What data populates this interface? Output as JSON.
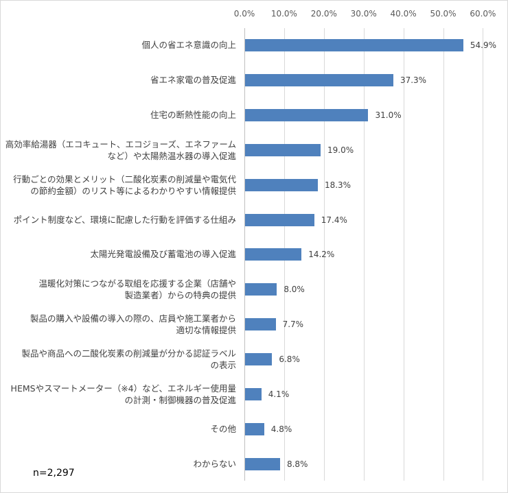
{
  "chart_data": {
    "type": "bar",
    "orientation": "horizontal",
    "title": "",
    "xlabel": "",
    "ylabel": "",
    "xlim": [
      0,
      60
    ],
    "x_ticks": [
      "0.0%",
      "10.0%",
      "20.0%",
      "30.0%",
      "40.0%",
      "50.0%",
      "60.0%"
    ],
    "grid": true,
    "legend": null,
    "bar_color": "#4F81BD",
    "annotation": "n=2,297",
    "categories": [
      "個人の省エネ意識の向上",
      "省エネ家電の普及促進",
      "住宅の断熱性能の向上",
      "高効率給湯器（エコキュート、エコジョーズ、エネファームなど）や太陽熱温水器の導入促進",
      "行動ごとの効果とメリット（二酸化炭素の削減量や電気代の節約金額）のリスト等によるわかりやすい情報提供",
      "ポイント制度など、環境に配慮した行動を評価する仕組み",
      "太陽光発電設備及び蓄電池の導入促進",
      "温暖化対策につながる取組を応援する企業（店舗や製造業者）からの特典の提供",
      "製品の購入や設備の導入の際の、店員や施工業者から適切な情報提供",
      "製品や商品への二酸化炭素の削減量が分かる認証ラベルの表示",
      "HEMSやスマートメーター（※4）など、エネルギー使用量の計測・制御機器の普及促進",
      "その他",
      "わからない"
    ],
    "values": [
      54.9,
      37.3,
      31.0,
      19.0,
      18.3,
      17.4,
      14.2,
      8.0,
      7.7,
      6.8,
      4.1,
      4.8,
      8.8
    ],
    "value_labels": [
      "54.9%",
      "37.3%",
      "31.0%",
      "19.0%",
      "18.3%",
      "17.4%",
      "14.2%",
      "8.0%",
      "7.7%",
      "6.8%",
      "4.1%",
      "4.8%",
      "8.8%"
    ]
  },
  "labels": {
    "rows": [
      {
        "line1": "個人の省エネ意識の向上",
        "line2": ""
      },
      {
        "line1": "省エネ家電の普及促進",
        "line2": ""
      },
      {
        "line1": "住宅の断熱性能の向上",
        "line2": ""
      },
      {
        "line1": "高効率給湯器（エコキュート、エコジョーズ、エネファーム",
        "line2": "など）や太陽熱温水器の導入促進"
      },
      {
        "line1": "行動ごとの効果とメリット（二酸化炭素の削減量や電気代",
        "line2": "の節約金額）のリスト等によるわかりやすい情報提供"
      },
      {
        "line1": "ポイント制度など、環境に配慮した行動を評価する仕組み",
        "line2": ""
      },
      {
        "line1": "太陽光発電設備及び蓄電池の導入促進",
        "line2": ""
      },
      {
        "line1": "温暖化対策につながる取組を応援する企業（店舗や",
        "line2": "製造業者）からの特典の提供"
      },
      {
        "line1": "製品の購入や設備の導入の際の、店員や施工業者から",
        "line2": "適切な情報提供"
      },
      {
        "line1": "製品や商品への二酸化炭素の削減量が分かる認証ラベル",
        "line2": "の表示"
      },
      {
        "line1": "HEMSやスマートメーター（※4）など、エネルギー使用量",
        "line2": "の計測・制御機器の普及促進"
      },
      {
        "line1": "その他",
        "line2": ""
      },
      {
        "line1": "わからない",
        "line2": ""
      }
    ]
  }
}
